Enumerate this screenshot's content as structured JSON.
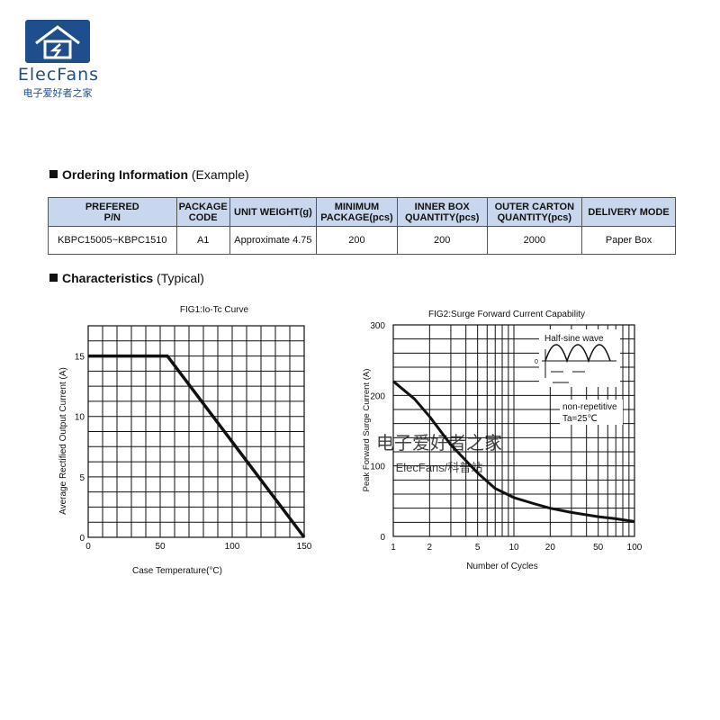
{
  "logo": {
    "name": "ElecFans",
    "subtitle": "电子爱好者之家"
  },
  "ordering": {
    "title_bold": "Ordering Information",
    "title_rest": " (Example)",
    "headers": [
      [
        "PREFERED",
        "P/N"
      ],
      [
        "PACKAGE",
        "CODE"
      ],
      [
        "UNIT WEIGHT(g)"
      ],
      [
        "MINIMUM",
        "PACKAGE(pcs)"
      ],
      [
        "INNER BOX",
        "QUANTITY(pcs)"
      ],
      [
        "OUTER CARTON",
        "QUANTITY(pcs)"
      ],
      [
        "DELIVERY MODE"
      ]
    ],
    "row": [
      "KBPC15005~KBPC1510",
      "A1",
      "Approximate 4.75",
      "200",
      "200",
      "2000",
      "Paper Box"
    ]
  },
  "characteristics": {
    "title_bold": "Characteristics",
    "title_rest": " (Typical)"
  },
  "watermark": {
    "line1": "电子爱好者之家",
    "line2": "ElecFans/科普站"
  },
  "chart_data": [
    {
      "type": "line",
      "title": "FIG1:Io-Tc Curve",
      "xlabel": "Case Temperature(°C)",
      "ylabel": "Average Rectified Output Current (A)",
      "xlim": [
        0,
        150
      ],
      "ylim": [
        0,
        17.5
      ],
      "xticks": [
        0,
        50,
        100,
        150
      ],
      "yticks": [
        0,
        5,
        10,
        15
      ],
      "grid": true,
      "x": [
        0,
        55,
        150
      ],
      "y": [
        15,
        15,
        0
      ]
    },
    {
      "type": "line",
      "title": "FIG2:Surge Forward Current Capability",
      "xlabel": "Number of Cycles",
      "ylabel": "Peak Forward Surge Current (A)",
      "xscale": "log",
      "xlim": [
        1,
        100
      ],
      "ylim": [
        0,
        300
      ],
      "xticks": [
        1,
        2,
        5,
        10,
        20,
        50,
        100
      ],
      "yticks": [
        0,
        100,
        200,
        300
      ],
      "grid": true,
      "x": [
        1,
        1.5,
        2,
        3,
        5,
        7,
        10,
        15,
        20,
        30,
        50,
        70,
        100
      ],
      "y": [
        220,
        195,
        170,
        130,
        90,
        68,
        55,
        46,
        40,
        34,
        28,
        25,
        21
      ],
      "annotations": [
        "Half-sine wave",
        "non-repetitive",
        "Ta=25℃"
      ],
      "inset_zero_label": "0"
    }
  ]
}
